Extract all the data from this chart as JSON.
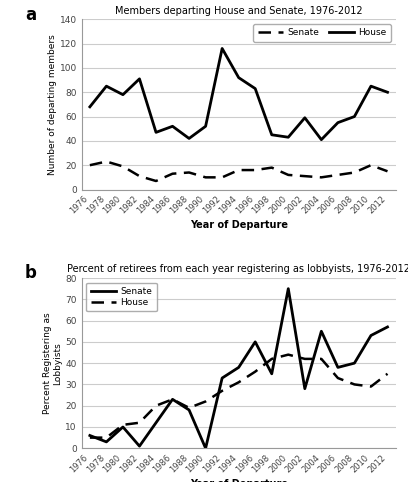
{
  "years": [
    1976,
    1978,
    1980,
    1982,
    1984,
    1986,
    1988,
    1990,
    1992,
    1994,
    1996,
    1998,
    2000,
    2002,
    2004,
    2006,
    2008,
    2010,
    2012
  ],
  "chart_a": {
    "title": "Members departing House and Senate, 1976-2012",
    "ylabel": "Number of departing members",
    "xlabel": "Year of Departure",
    "ylim": [
      0,
      140
    ],
    "yticks": [
      0,
      20,
      40,
      60,
      80,
      100,
      120,
      140
    ],
    "house": [
      68,
      85,
      78,
      91,
      47,
      52,
      42,
      52,
      116,
      92,
      83,
      45,
      43,
      59,
      41,
      55,
      60,
      85,
      80
    ],
    "senate": [
      20,
      23,
      19,
      11,
      7,
      13,
      14,
      10,
      10,
      16,
      16,
      18,
      12,
      11,
      10,
      12,
      14,
      20,
      15
    ]
  },
  "chart_b": {
    "title": "Percent of retirees from each year registering as lobbyists, 1976-2012",
    "ylabel": "Percent Registering as\nLobbyists",
    "xlabel": "Year of Departure",
    "ylim": [
      0,
      80
    ],
    "yticks": [
      0,
      10,
      20,
      30,
      40,
      50,
      60,
      70,
      80
    ],
    "senate": [
      6,
      3,
      10,
      1,
      12,
      23,
      18,
      0,
      33,
      38,
      50,
      35,
      75,
      28,
      55,
      38,
      40,
      53,
      57
    ],
    "house": [
      5,
      5,
      11,
      12,
      20,
      23,
      19,
      22,
      27,
      31,
      36,
      42,
      44,
      42,
      42,
      33,
      30,
      29,
      35
    ]
  },
  "bg_color": "#ffffff",
  "line_color": "#000000",
  "grid_color": "#cccccc",
  "spine_color": "#999999"
}
